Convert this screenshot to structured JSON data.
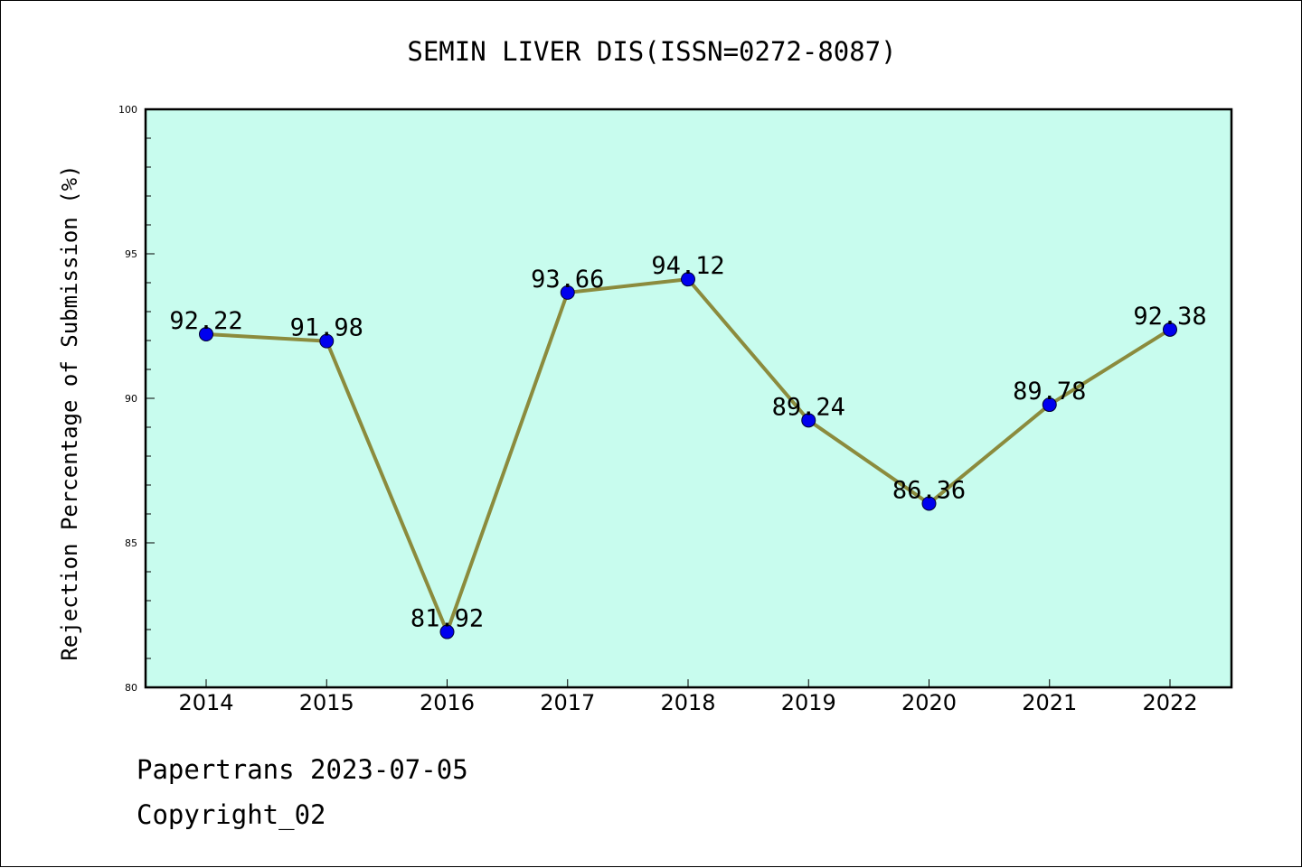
{
  "chart_data": {
    "type": "line",
    "title": "SEMIN LIVER DIS(ISSN=0272-8087)",
    "xlabel": "",
    "ylabel": "Rejection Percentage of Submission (%)",
    "categories": [
      "2014",
      "2015",
      "2016",
      "2017",
      "2018",
      "2019",
      "2020",
      "2021",
      "2022"
    ],
    "series": [
      {
        "values": [
          92.22,
          91.98,
          81.92,
          93.66,
          94.12,
          89.24,
          86.36,
          89.78,
          92.38
        ],
        "data_labels": [
          "92.22",
          "91.98",
          "81.92",
          "93.66",
          "94.12",
          "89.24",
          "86.36",
          "89.78",
          "92.38"
        ],
        "line_color": "#8b8b3d",
        "marker_color": "#0000ee"
      }
    ],
    "ylim": [
      80,
      100
    ],
    "y_ticks": [
      "80",
      "85",
      "90",
      "95",
      "100"
    ],
    "plot_background": "#c8fcee",
    "grid": false,
    "legend": "none"
  },
  "footer": {
    "source_line": "Papertrans 2023-07-05",
    "copyright_line": "Copyright_02"
  }
}
